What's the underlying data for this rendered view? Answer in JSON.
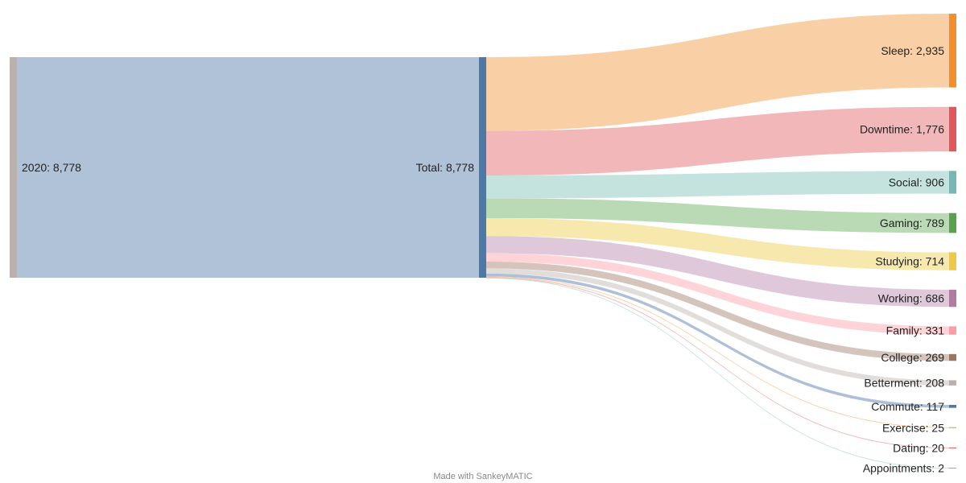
{
  "chart_data": {
    "type": "sankey",
    "source": {
      "label": "2020: 8,778",
      "value": 8778,
      "color": "#bab0ac"
    },
    "total": {
      "label": "Total: 8,778",
      "value": 8778,
      "color": "#4e79a7"
    },
    "source_flow_color": "#b0c2d8",
    "targets": [
      {
        "label": "Sleep: 2,935",
        "value": 2935,
        "color": "#f28e2b",
        "flow_color": "#f9cda1"
      },
      {
        "label": "Downtime: 1,776",
        "value": 1776,
        "color": "#e15759",
        "flow_color": "#f1b3b4"
      },
      {
        "label": "Social: 906",
        "value": 906,
        "color": "#76b7b2",
        "flow_color": "#c1e1dd"
      },
      {
        "label": "Gaming: 789",
        "value": 789,
        "color": "#59a14f",
        "flow_color": "#b6d8b2"
      },
      {
        "label": "Studying: 714",
        "value": 714,
        "color": "#edc948",
        "flow_color": "#f7e8aa"
      },
      {
        "label": "Working: 686",
        "value": 686,
        "color": "#b07aa1",
        "flow_color": "#dcc5d7"
      },
      {
        "label": "Family: 331",
        "value": 331,
        "color": "#ff9da7",
        "flow_color": "#ffd2d7"
      },
      {
        "label": "College: 269",
        "value": 269,
        "color": "#9c755f",
        "flow_color": "#d2c1b7"
      },
      {
        "label": "Betterment: 208",
        "value": 208,
        "color": "#bab0ac",
        "flow_color": "#dedbd9"
      },
      {
        "label": "Commute: 117",
        "value": 117,
        "color": "#4e79a7",
        "flow_color": "#a9bdd5"
      },
      {
        "label": "Exercise: 25",
        "value": 25,
        "color": "#f28e2b",
        "flow_color": "#f9cda1"
      },
      {
        "label": "Dating: 20",
        "value": 20,
        "color": "#e15759",
        "flow_color": "#f1b3b4"
      },
      {
        "label": "Appointments: 2",
        "value": 2,
        "color": "#76b7b2",
        "flow_color": "#c1e1dd"
      }
    ]
  },
  "footer": {
    "text": "Made with SankeyMATIC"
  }
}
